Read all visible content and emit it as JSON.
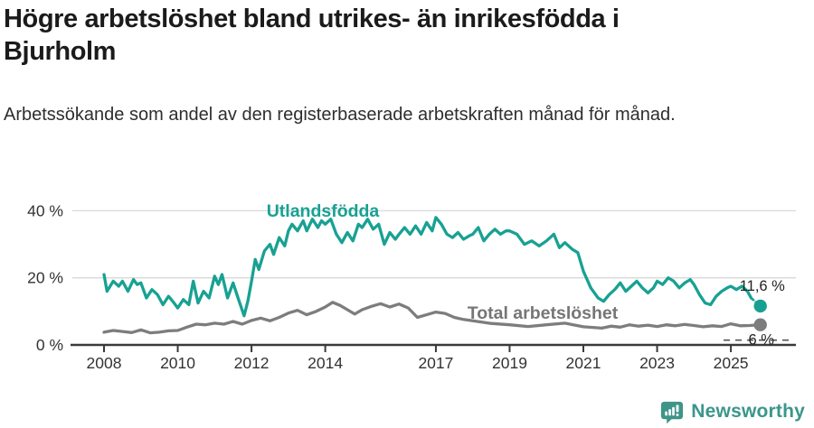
{
  "header": {
    "title": "Högre arbetslöshet bland utrikes- än inrikesfödda i Bjurholm",
    "subtitle": "Arbetssökande som andel av den registerbaserade arbetskraften månad för månad."
  },
  "footer": {
    "brand": "Newsworthy"
  },
  "colors": {
    "title": "#1b1b1b",
    "axis": "#3a3a3a",
    "grid": "#d9d9d9",
    "tick_text": "#333333",
    "end_label_text": "#222222",
    "foreign_line": "#18a193",
    "total_line": "#7d7d7d",
    "total_label": "#767676",
    "brand_teal": "#3a968b"
  },
  "chart_data": {
    "type": "line",
    "title": "Högre arbetslöshet bland utrikes- än inrikesfödda i Bjurholm",
    "subtitle": "Arbetssökande som andel av den registerbaserade arbetskraften månad för månad.",
    "ylabel": "",
    "xlabel": "",
    "ylim": [
      0,
      45
    ],
    "xlim": [
      2007.8,
      2026.2
    ],
    "grid": "horizontal",
    "legend_position": "inline-labels",
    "x_ticks": [
      2008,
      2010,
      2012,
      2014,
      2017,
      2019,
      2021,
      2023,
      2025
    ],
    "x_tick_labels": [
      "2008",
      "2010",
      "2012",
      "2014",
      "2017",
      "2019",
      "2021",
      "2023",
      "2025"
    ],
    "y_ticks": [
      0,
      20,
      40
    ],
    "y_tick_labels": [
      "0 %",
      "20 %",
      "40 %"
    ],
    "series": [
      {
        "name": "Utlandsfödda",
        "color": "#18a193",
        "end_label": "11,6 %",
        "end_value": 11.6,
        "dash_tail_points": 2,
        "end_marker": true,
        "points": [
          [
            2008.0,
            21
          ],
          [
            2008.08,
            16
          ],
          [
            2008.25,
            19
          ],
          [
            2008.4,
            17.5
          ],
          [
            2008.5,
            19
          ],
          [
            2008.65,
            16
          ],
          [
            2008.8,
            19.5
          ],
          [
            2008.9,
            18
          ],
          [
            2009.0,
            18.5
          ],
          [
            2009.15,
            14
          ],
          [
            2009.3,
            16.5
          ],
          [
            2009.45,
            15
          ],
          [
            2009.6,
            12
          ],
          [
            2009.75,
            14.5
          ],
          [
            2009.9,
            12.5
          ],
          [
            2010.0,
            11
          ],
          [
            2010.15,
            13.5
          ],
          [
            2010.3,
            12
          ],
          [
            2010.42,
            19
          ],
          [
            2010.55,
            12.5
          ],
          [
            2010.7,
            16
          ],
          [
            2010.85,
            14
          ],
          [
            2011.0,
            20.5
          ],
          [
            2011.1,
            18
          ],
          [
            2011.2,
            21
          ],
          [
            2011.35,
            14
          ],
          [
            2011.5,
            18.5
          ],
          [
            2011.65,
            13.5
          ],
          [
            2011.8,
            8.7
          ],
          [
            2011.9,
            13
          ],
          [
            2012.0,
            19
          ],
          [
            2012.1,
            25.5
          ],
          [
            2012.2,
            22.5
          ],
          [
            2012.35,
            28
          ],
          [
            2012.5,
            30
          ],
          [
            2012.6,
            27
          ],
          [
            2012.75,
            32
          ],
          [
            2012.9,
            29.5
          ],
          [
            2013.0,
            34
          ],
          [
            2013.1,
            36
          ],
          [
            2013.25,
            34
          ],
          [
            2013.4,
            37
          ],
          [
            2013.5,
            34
          ],
          [
            2013.65,
            37.5
          ],
          [
            2013.8,
            35
          ],
          [
            2013.9,
            37
          ],
          [
            2014.0,
            36
          ],
          [
            2014.15,
            37.5
          ],
          [
            2014.3,
            33
          ],
          [
            2014.45,
            30.5
          ],
          [
            2014.6,
            33.5
          ],
          [
            2014.75,
            31
          ],
          [
            2014.9,
            36
          ],
          [
            2015.0,
            35
          ],
          [
            2015.15,
            37.5
          ],
          [
            2015.3,
            34.5
          ],
          [
            2015.45,
            36
          ],
          [
            2015.6,
            30
          ],
          [
            2015.75,
            33.5
          ],
          [
            2015.9,
            31.5
          ],
          [
            2016.0,
            33
          ],
          [
            2016.15,
            35
          ],
          [
            2016.3,
            33
          ],
          [
            2016.45,
            35.5
          ],
          [
            2016.6,
            33
          ],
          [
            2016.75,
            36.5
          ],
          [
            2016.9,
            34
          ],
          [
            2017.0,
            38
          ],
          [
            2017.15,
            36
          ],
          [
            2017.3,
            33
          ],
          [
            2017.45,
            32
          ],
          [
            2017.6,
            33.5
          ],
          [
            2017.75,
            31.5
          ],
          [
            2017.9,
            32.5
          ],
          [
            2018.0,
            33
          ],
          [
            2018.15,
            35
          ],
          [
            2018.3,
            31
          ],
          [
            2018.45,
            33
          ],
          [
            2018.6,
            34.5
          ],
          [
            2018.75,
            33
          ],
          [
            2018.9,
            34
          ],
          [
            2019.0,
            34
          ],
          [
            2019.2,
            33
          ],
          [
            2019.4,
            30
          ],
          [
            2019.6,
            31
          ],
          [
            2019.8,
            29.5
          ],
          [
            2020.0,
            31
          ],
          [
            2020.2,
            33
          ],
          [
            2020.35,
            29
          ],
          [
            2020.5,
            30.5
          ],
          [
            2020.7,
            28.5
          ],
          [
            2020.85,
            27.5
          ],
          [
            2021.0,
            22
          ],
          [
            2021.2,
            17
          ],
          [
            2021.4,
            14
          ],
          [
            2021.55,
            13
          ],
          [
            2021.7,
            15
          ],
          [
            2021.85,
            16.5
          ],
          [
            2022.0,
            18.5
          ],
          [
            2022.15,
            16
          ],
          [
            2022.3,
            17.5
          ],
          [
            2022.45,
            19
          ],
          [
            2022.6,
            17
          ],
          [
            2022.75,
            15.5
          ],
          [
            2022.9,
            17
          ],
          [
            2023.0,
            19
          ],
          [
            2023.15,
            18
          ],
          [
            2023.3,
            20
          ],
          [
            2023.45,
            19
          ],
          [
            2023.6,
            17
          ],
          [
            2023.75,
            18.5
          ],
          [
            2023.9,
            19.5
          ],
          [
            2024.0,
            18
          ],
          [
            2024.15,
            15
          ],
          [
            2024.3,
            12.5
          ],
          [
            2024.45,
            12
          ],
          [
            2024.6,
            14.5
          ],
          [
            2024.75,
            16
          ],
          [
            2024.9,
            17
          ],
          [
            2025.0,
            17.5
          ],
          [
            2025.15,
            16.5
          ],
          [
            2025.3,
            17.5
          ],
          [
            2025.45,
            16
          ],
          [
            2025.55,
            14
          ],
          [
            2025.8,
            11.6
          ]
        ]
      },
      {
        "name": "Total arbetslöshet",
        "color": "#7d7d7d",
        "end_label": "6 %",
        "end_value": 6,
        "dash_tail_points": 0,
        "end_marker": true,
        "end_leader_line": true,
        "points": [
          [
            2008.0,
            3.8
          ],
          [
            2008.25,
            4.3
          ],
          [
            2008.5,
            4.0
          ],
          [
            2008.75,
            3.7
          ],
          [
            2009.0,
            4.5
          ],
          [
            2009.25,
            3.6
          ],
          [
            2009.5,
            3.8
          ],
          [
            2009.75,
            4.2
          ],
          [
            2010.0,
            4.3
          ],
          [
            2010.25,
            5.3
          ],
          [
            2010.5,
            6.2
          ],
          [
            2010.75,
            6.0
          ],
          [
            2011.0,
            6.5
          ],
          [
            2011.25,
            6.2
          ],
          [
            2011.5,
            7.0
          ],
          [
            2011.75,
            6.2
          ],
          [
            2012.0,
            7.3
          ],
          [
            2012.25,
            8.0
          ],
          [
            2012.5,
            7.2
          ],
          [
            2012.75,
            8.2
          ],
          [
            2013.0,
            9.5
          ],
          [
            2013.25,
            10.3
          ],
          [
            2013.5,
            9.0
          ],
          [
            2013.75,
            10.0
          ],
          [
            2014.0,
            11.3
          ],
          [
            2014.2,
            12.7
          ],
          [
            2014.4,
            11.8
          ],
          [
            2014.6,
            10.5
          ],
          [
            2014.8,
            9.2
          ],
          [
            2015.0,
            10.5
          ],
          [
            2015.25,
            11.5
          ],
          [
            2015.5,
            12.3
          ],
          [
            2015.75,
            11.3
          ],
          [
            2016.0,
            12.2
          ],
          [
            2016.25,
            11.0
          ],
          [
            2016.5,
            8.2
          ],
          [
            2016.75,
            9.0
          ],
          [
            2017.0,
            9.8
          ],
          [
            2017.25,
            9.4
          ],
          [
            2017.5,
            8.2
          ],
          [
            2017.75,
            7.6
          ],
          [
            2018.0,
            7.2
          ],
          [
            2018.5,
            6.4
          ],
          [
            2019.0,
            6.0
          ],
          [
            2019.5,
            5.5
          ],
          [
            2020.0,
            6.0
          ],
          [
            2020.5,
            6.5
          ],
          [
            2021.0,
            5.4
          ],
          [
            2021.5,
            5.0
          ],
          [
            2021.75,
            5.6
          ],
          [
            2022.0,
            5.3
          ],
          [
            2022.25,
            6.0
          ],
          [
            2022.5,
            5.6
          ],
          [
            2022.75,
            5.9
          ],
          [
            2023.0,
            5.5
          ],
          [
            2023.25,
            6.0
          ],
          [
            2023.5,
            5.7
          ],
          [
            2023.75,
            6.1
          ],
          [
            2024.0,
            5.8
          ],
          [
            2024.25,
            5.4
          ],
          [
            2024.5,
            5.7
          ],
          [
            2024.75,
            5.5
          ],
          [
            2025.0,
            6.3
          ],
          [
            2025.25,
            5.7
          ],
          [
            2025.5,
            5.8
          ],
          [
            2025.8,
            6.0
          ]
        ]
      }
    ]
  }
}
